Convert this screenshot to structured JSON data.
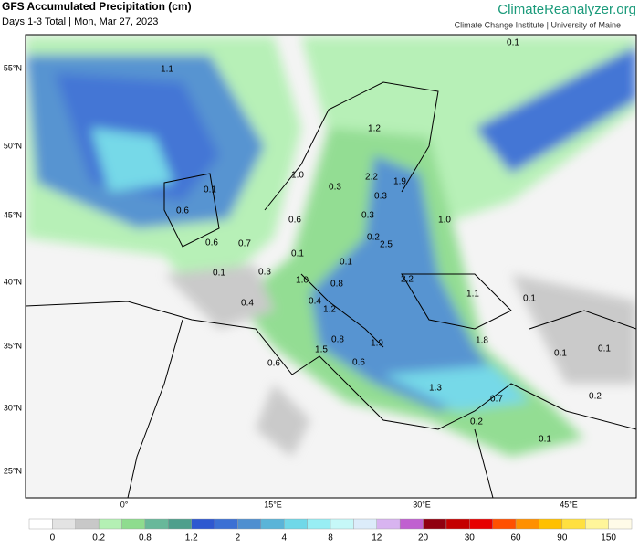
{
  "header": {
    "title": "GFS Accumulated Precipitation (cm)",
    "subtitle": "Days 1-3 Total | Mon, Mar 27, 2023",
    "brand": "ClimateReanalyzer.org",
    "institute": "Climate Change Institute | University of Maine"
  },
  "map": {
    "lat_labels": [
      "55°N",
      "50°N",
      "45°N",
      "40°N",
      "35°N",
      "30°N",
      "25°N"
    ],
    "lon_labels": [
      "0°",
      "15°E",
      "30°E",
      "45°E"
    ],
    "point_labels": [
      "0.1",
      "1.1",
      "1.2",
      "1.0",
      "2.2",
      "1.9",
      "0.3",
      "0.3",
      "0.1",
      "0.6",
      "0.6",
      "0.3",
      "1.0",
      "0.2",
      "2.5",
      "0.6",
      "0.7",
      "0.1",
      "0.1",
      "0.1",
      "0.3",
      "2.2",
      "1.0",
      "0.8",
      "0.4",
      "0.1",
      "0.4",
      "1.1",
      "1.2",
      "0.8",
      "1.9",
      "1.8",
      "1.5",
      "0.1",
      "0.1",
      "0.6",
      "0.6",
      "1.3",
      "0.7",
      "0.2",
      "0.2",
      "0.1"
    ]
  },
  "colorbar": {
    "colors": [
      "#ffffff",
      "#e3e3e3",
      "#c8c8c8",
      "#b4f0b4",
      "#8edc8e",
      "#68b89a",
      "#4f9f8c",
      "#2e58d0",
      "#3b70d4",
      "#4f8fd0",
      "#5ab4d8",
      "#70d8e8",
      "#98eef4",
      "#c6f8f8",
      "#dcecfa",
      "#d8b4f0",
      "#c060d0",
      "#900010",
      "#c40000",
      "#e60000",
      "#ff5000",
      "#ff9000",
      "#ffc000",
      "#ffe040",
      "#fff59a",
      "#fffbe8"
    ],
    "ticks": [
      "0",
      "0.2",
      "0.8",
      "1.2",
      "2",
      "4",
      "8",
      "12",
      "20",
      "30",
      "60",
      "90",
      "150"
    ]
  }
}
